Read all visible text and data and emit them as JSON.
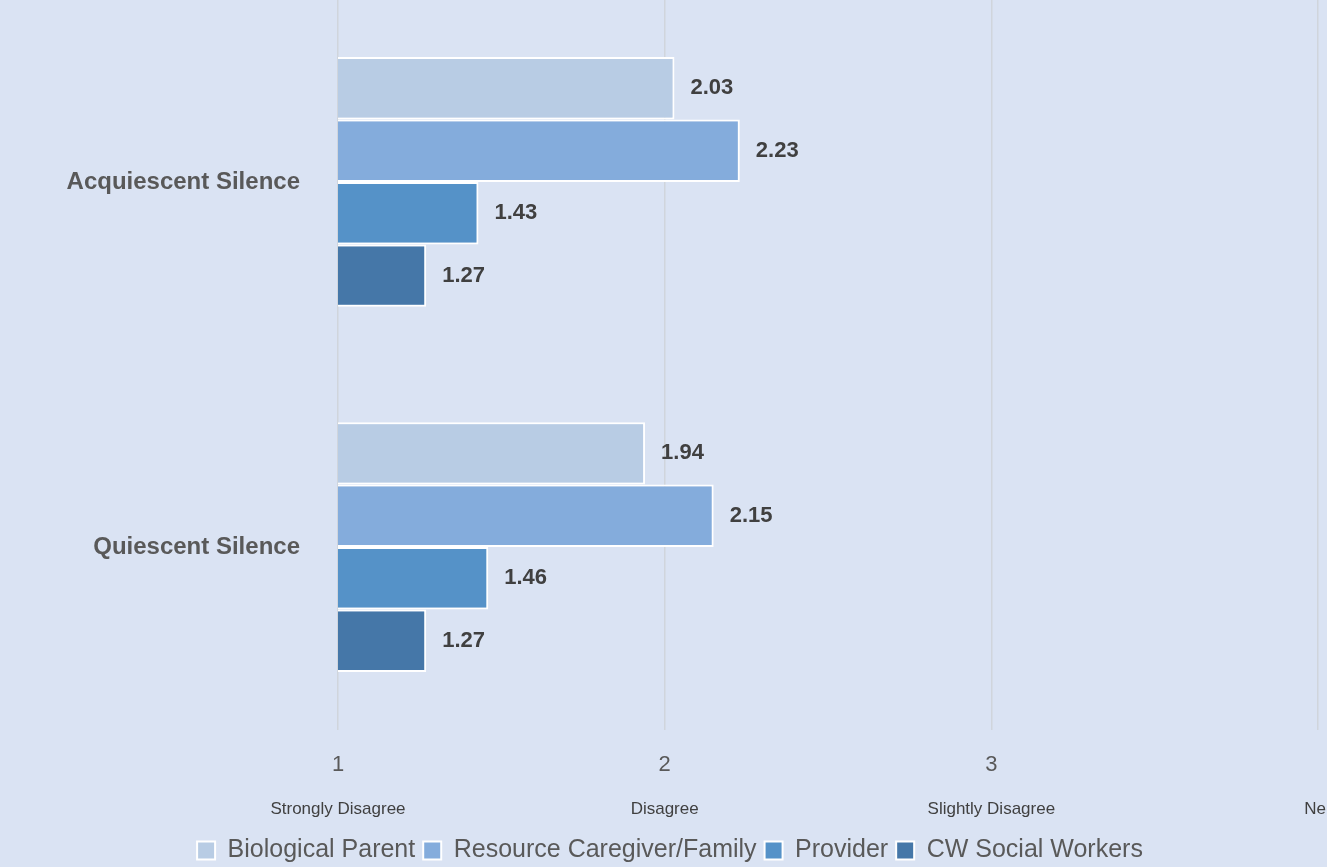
{
  "chart_data": {
    "type": "bar",
    "orientation": "horizontal",
    "categories": [
      "Acquiescent Silence",
      "Quiescent Silence"
    ],
    "series": [
      {
        "name": "Biological Parent",
        "color": "#b8cce4",
        "values": [
          2.03,
          1.94
        ]
      },
      {
        "name": "Resource Caregiver/Family",
        "color": "#84acdc",
        "values": [
          2.23,
          2.15
        ]
      },
      {
        "name": "Provider",
        "color": "#5592c8",
        "values": [
          1.43,
          1.46
        ]
      },
      {
        "name": "CW Social Workers",
        "color": "#4577a8",
        "values": [
          1.27,
          1.27
        ]
      }
    ],
    "xlim": [
      1,
      4
    ],
    "xticks": [
      1,
      2,
      3,
      {
        "value": 4,
        "label": null
      }
    ],
    "grid": "x",
    "legend": "bottom",
    "data_labels": true,
    "annotations": [
      "Strongly Disagree",
      "Disagree",
      "Slightly Disagree",
      "Ne"
    ]
  }
}
